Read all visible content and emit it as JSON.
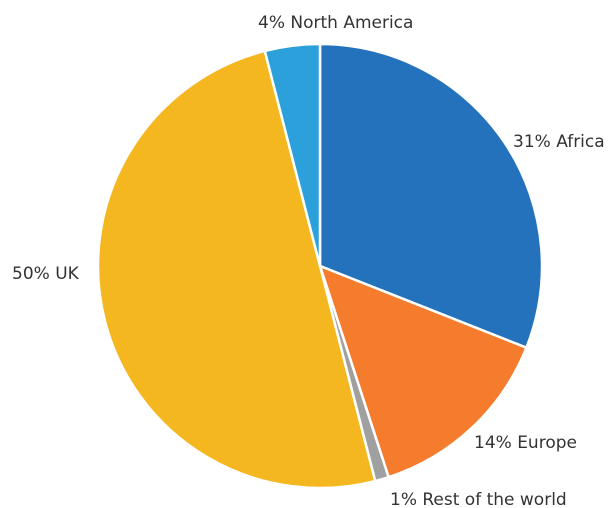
{
  "chart_data": {
    "type": "pie",
    "title": "",
    "start": "top",
    "direction": "clockwise",
    "legend": "none",
    "slices": [
      {
        "label": "31% Africa",
        "value": 31,
        "color": "#2471bc"
      },
      {
        "label": "14% Europe",
        "value": 14,
        "color": "#f47c2c"
      },
      {
        "label": "1% Rest of the world",
        "value": 1,
        "color": "#a0a0a0"
      },
      {
        "label": "50% UK",
        "value": 50,
        "color": "#f5b720"
      },
      {
        "label": "4% North America",
        "value": 4,
        "color": "#2ba0db"
      }
    ]
  }
}
